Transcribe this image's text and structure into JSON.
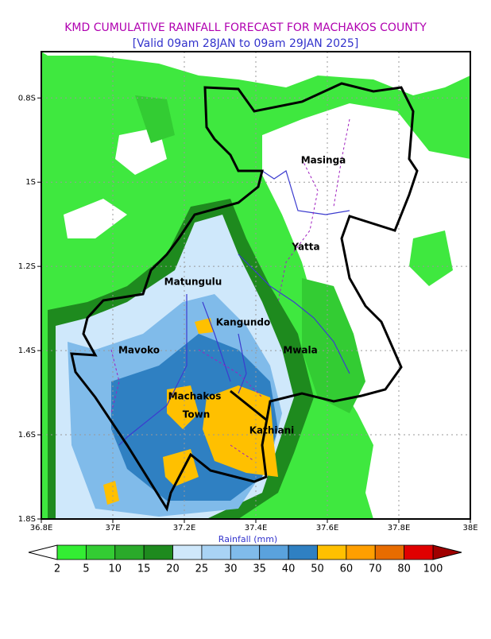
{
  "header": {
    "title": "KMD CUMULATIVE RAINFALL FORECAST FOR MACHAKOS COUNTY",
    "subtitle": "[Valid 09am 28JAN to 09am 29JAN 2025]"
  },
  "map": {
    "lon_range": [
      36.8,
      38
    ],
    "lat_range": [
      -0.69,
      -1.8
    ],
    "lon_ticks": [
      {
        "value": 36.8,
        "label": "36.8E"
      },
      {
        "value": 37,
        "label": "37E"
      },
      {
        "value": 37.2,
        "label": "37.2E"
      },
      {
        "value": 37.4,
        "label": "37.4E"
      },
      {
        "value": 37.6,
        "label": "37.6E"
      },
      {
        "value": 37.8,
        "label": "37.8E"
      },
      {
        "value": 38,
        "label": "38E"
      }
    ],
    "lat_ticks": [
      {
        "value": -0.8,
        "label": "0.8S"
      },
      {
        "value": -1,
        "label": "1S"
      },
      {
        "value": -1.2,
        "label": "1.2S"
      },
      {
        "value": -1.4,
        "label": "1.4S"
      },
      {
        "value": -1.6,
        "label": "1.6S"
      },
      {
        "value": -1.8,
        "label": "1.8S"
      }
    ],
    "places": [
      [
        "Masinga"
      ],
      [
        "Yatta"
      ],
      [
        "Matungulu"
      ],
      [
        "Kangundo"
      ],
      [
        "Mwala"
      ],
      [
        "Mavoko"
      ],
      [
        "Machakos",
        "Town"
      ],
      [
        "Kathiani"
      ]
    ]
  },
  "legend": {
    "label": "Rainfall (mm)",
    "levels": [
      2,
      5,
      10,
      15,
      20,
      25,
      30,
      35,
      40,
      50,
      60,
      70,
      80,
      100
    ],
    "colors": [
      "#33ee33",
      "#33cc33",
      "#2aaa2a",
      "#1e8a1e",
      "#cfe8fb",
      "#a9d3f4",
      "#80bbea",
      "#5aa2dd",
      "#2f80c2",
      "#ffc000",
      "#ff9f00",
      "#e86c00",
      "#e00000"
    ],
    "under_color": "#ffffff",
    "over_color": "#a00000"
  }
}
